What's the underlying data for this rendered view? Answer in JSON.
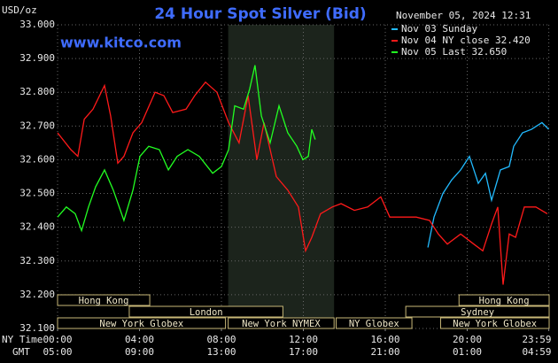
{
  "chart_data": {
    "type": "line",
    "title": "24 Hour Spot Silver (Bid)",
    "watermark": "www.kitco.com",
    "timestamp": "November 05, 2024 12:31",
    "ylabel": "USD/oz",
    "xlabel": "NY Time",
    "x2label": "GMT",
    "xlim": [
      0,
      24
    ],
    "ylim": [
      32.1,
      33.0
    ],
    "grid": true,
    "yticks": [
      {
        "value": 32.1,
        "label": "32.100"
      },
      {
        "value": 32.2,
        "label": "32.200"
      },
      {
        "value": 32.3,
        "label": "32.300"
      },
      {
        "value": 32.4,
        "label": "32.400"
      },
      {
        "value": 32.5,
        "label": "32.500"
      },
      {
        "value": 32.6,
        "label": "32.600"
      },
      {
        "value": 32.7,
        "label": "32.700"
      },
      {
        "value": 32.8,
        "label": "32.800"
      },
      {
        "value": 32.9,
        "label": "32.900"
      },
      {
        "value": 33.0,
        "label": "33.000"
      }
    ],
    "xticks": [
      {
        "value": 0,
        "label": "00:00"
      },
      {
        "value": 4,
        "label": "04:00"
      },
      {
        "value": 8,
        "label": "08:00"
      },
      {
        "value": 12,
        "label": "12:00"
      },
      {
        "value": 16,
        "label": "16:00"
      },
      {
        "value": 20,
        "label": "20:00"
      },
      {
        "value": 23.983,
        "label": "23:59"
      }
    ],
    "x2ticks": [
      {
        "value": 0,
        "label": "05:00"
      },
      {
        "value": 4,
        "label": "09:00"
      },
      {
        "value": 8,
        "label": "13:00"
      },
      {
        "value": 12,
        "label": "17:00"
      },
      {
        "value": 16,
        "label": "21:00"
      },
      {
        "value": 20,
        "label": "01:00"
      },
      {
        "value": 23.983,
        "label": "04:59"
      }
    ],
    "sessions": [
      [
        {
          "label": "Hong Kong",
          "start": 0,
          "end": 4.5
        },
        {
          "label": "Hong Kong",
          "start": 19.6,
          "end": 24
        }
      ],
      [
        {
          "label": "London",
          "start": 3.5,
          "end": 11
        },
        {
          "label": "Sydney",
          "start": 17,
          "end": 24
        }
      ],
      [
        {
          "label": "New York Globex",
          "start": 0,
          "end": 8.2
        },
        {
          "label": "New York NYMEX",
          "start": 8.33,
          "end": 13.5,
          "highlight": true
        },
        {
          "label": "NY Globex",
          "start": 13.6,
          "end": 17.3
        },
        {
          "label": "New York Globex",
          "start": 18.7,
          "end": 24
        }
      ]
    ],
    "series": [
      {
        "name": "Nov 03 Sunday",
        "color": "#22bbff",
        "x": [
          18.08,
          18.38,
          18.81,
          19.24,
          19.68,
          20.11,
          20.54,
          20.89,
          21.19,
          21.62,
          22.05,
          22.27,
          22.7,
          23.14,
          23.65,
          23.98
        ],
        "values": [
          32.34,
          32.43,
          32.5,
          32.54,
          32.57,
          32.61,
          32.53,
          32.56,
          32.48,
          32.57,
          32.58,
          32.64,
          32.68,
          32.69,
          32.71,
          32.69
        ]
      },
      {
        "name": "Nov 04 NY close 32.420",
        "color": "#ff1a1a",
        "x": [
          0,
          0.65,
          0.99,
          1.3,
          1.73,
          2.29,
          2.59,
          2.94,
          3.24,
          3.68,
          4.11,
          4.76,
          5.19,
          5.62,
          6.27,
          6.7,
          7.22,
          7.78,
          8.35,
          8.86,
          9.3,
          9.73,
          10.08,
          10.38,
          10.68,
          11.24,
          11.76,
          12.11,
          12.41,
          12.84,
          13.41,
          13.84,
          14.49,
          15.14,
          15.78,
          16.22,
          16.86,
          17.51,
          18.16,
          18.59,
          19.03,
          19.68,
          20.32,
          20.76,
          21.19,
          21.49,
          21.75,
          22.05,
          22.36,
          22.79,
          23.35,
          23.91
        ],
        "values": [
          32.68,
          32.63,
          32.61,
          32.72,
          32.75,
          32.82,
          32.73,
          32.59,
          32.61,
          32.68,
          32.71,
          32.8,
          32.79,
          32.74,
          32.75,
          32.79,
          32.83,
          32.8,
          32.71,
          32.65,
          32.79,
          32.6,
          32.71,
          32.63,
          32.55,
          32.51,
          32.46,
          32.33,
          32.37,
          32.44,
          32.46,
          32.47,
          32.45,
          32.46,
          32.49,
          32.43,
          32.43,
          32.43,
          32.42,
          32.38,
          32.35,
          32.38,
          32.35,
          32.33,
          32.41,
          32.46,
          32.23,
          32.38,
          32.37,
          32.46,
          32.46,
          32.44
        ]
      },
      {
        "name": "Nov 05 Last 32.650",
        "color": "#22ff22",
        "x": [
          0,
          0.43,
          0.86,
          1.17,
          1.51,
          1.86,
          2.29,
          2.72,
          3.24,
          3.68,
          4.02,
          4.45,
          4.97,
          5.41,
          5.84,
          6.36,
          6.92,
          7.57,
          8.0,
          8.35,
          8.65,
          9.08,
          9.38,
          9.64,
          9.95,
          10.38,
          10.81,
          11.24,
          11.68,
          11.98,
          12.24,
          12.41,
          12.58
        ],
        "values": [
          32.43,
          32.46,
          32.44,
          32.39,
          32.46,
          32.52,
          32.57,
          32.51,
          32.42,
          32.51,
          32.61,
          32.64,
          32.63,
          32.57,
          32.61,
          32.63,
          32.61,
          32.56,
          32.58,
          32.63,
          32.76,
          32.75,
          32.81,
          32.88,
          32.73,
          32.65,
          32.76,
          32.68,
          32.64,
          32.6,
          32.61,
          32.69,
          32.66
        ]
      }
    ]
  }
}
